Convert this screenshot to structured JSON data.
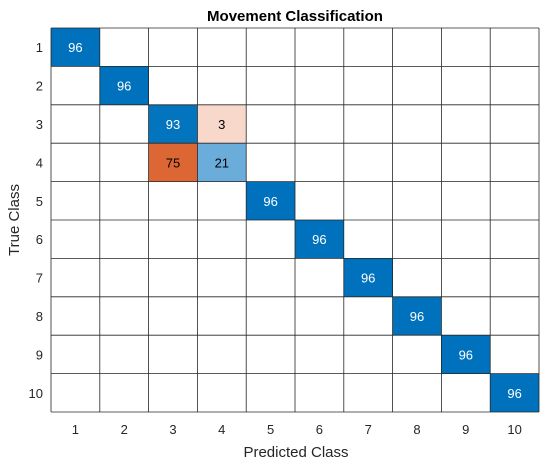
{
  "chart_data": {
    "type": "heatmap",
    "title": "Movement Classification",
    "xlabel": "Predicted Class",
    "ylabel": "True Class",
    "x_categories": [
      "1",
      "2",
      "3",
      "4",
      "5",
      "6",
      "7",
      "8",
      "9",
      "10"
    ],
    "y_categories": [
      "1",
      "2",
      "3",
      "4",
      "5",
      "6",
      "7",
      "8",
      "9",
      "10"
    ],
    "grid": true,
    "colors": {
      "diagonal_high": "#0072BD",
      "diagonal_low": "#BDDBF0",
      "offdiag_high": "#D95319",
      "offdiag_low": "#FCEFEA",
      "label_on_dark": "#ffffff",
      "label_on_light": "#000000",
      "gridline": "#262626"
    },
    "cells": [
      {
        "true": "1",
        "pred": "1",
        "value": 96,
        "label": "96"
      },
      {
        "true": "2",
        "pred": "2",
        "value": 96,
        "label": "96"
      },
      {
        "true": "3",
        "pred": "3",
        "value": 93,
        "label": "93"
      },
      {
        "true": "3",
        "pred": "4",
        "value": 3,
        "label": "3"
      },
      {
        "true": "4",
        "pred": "3",
        "value": 75,
        "label": "75"
      },
      {
        "true": "4",
        "pred": "4",
        "value": 21,
        "label": "21"
      },
      {
        "true": "5",
        "pred": "5",
        "value": 96,
        "label": "96"
      },
      {
        "true": "6",
        "pred": "6",
        "value": 96,
        "label": "96"
      },
      {
        "true": "7",
        "pred": "7",
        "value": 96,
        "label": "96"
      },
      {
        "true": "8",
        "pred": "8",
        "value": 96,
        "label": "96"
      },
      {
        "true": "9",
        "pred": "9",
        "value": 96,
        "label": "96"
      },
      {
        "true": "10",
        "pred": "10",
        "value": 96,
        "label": "96"
      }
    ]
  }
}
